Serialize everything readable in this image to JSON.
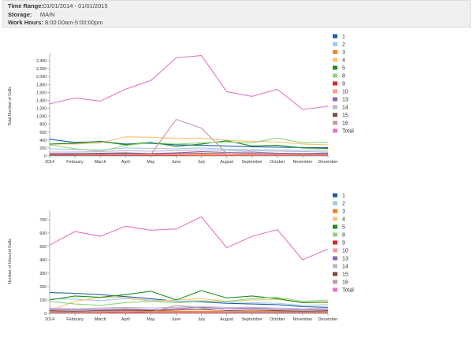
{
  "header": {
    "time_range_label": "Time Range:",
    "time_range_value": "01/01/2014 - 01/01/2015",
    "storage_label": "Storage:",
    "storage_value": "MAIN",
    "work_hours_label": "Work Hours:",
    "work_hours_value": "8:00:00am-5:00:00pm"
  },
  "chart_data": [
    {
      "type": "line",
      "ylabel": "Total Number of Calls",
      "ylim": [
        0,
        2500
      ],
      "yticks": [
        0,
        200,
        400,
        600,
        800,
        1000,
        1200,
        1400,
        1600,
        1800,
        2000,
        2200,
        2400
      ],
      "categories": [
        "2014",
        "February",
        "March",
        "April",
        "May",
        "June",
        "July",
        "August",
        "September",
        "October",
        "November",
        "December"
      ],
      "series": [
        {
          "name": "1",
          "color": "#1f5fa8",
          "values": [
            420,
            340,
            360,
            300,
            320,
            280,
            270,
            250,
            230,
            220,
            210,
            210
          ]
        },
        {
          "name": "2",
          "color": "#9ecae1",
          "values": [
            180,
            160,
            150,
            200,
            190,
            180,
            200,
            170,
            160,
            150,
            140,
            160
          ]
        },
        {
          "name": "3",
          "color": "#f97b1c",
          "values": [
            30,
            40,
            35,
            40,
            30,
            30,
            35,
            30,
            30,
            30,
            30,
            30
          ]
        },
        {
          "name": "4",
          "color": "#fdbf6f",
          "values": [
            300,
            300,
            330,
            480,
            470,
            440,
            450,
            390,
            370,
            350,
            300,
            280
          ]
        },
        {
          "name": "5",
          "color": "#1e8f1e",
          "values": [
            300,
            320,
            370,
            280,
            350,
            240,
            300,
            380,
            250,
            270,
            200,
            190
          ]
        },
        {
          "name": "8",
          "color": "#8fd47e",
          "values": [
            280,
            180,
            120,
            260,
            340,
            300,
            330,
            350,
            330,
            450,
            330,
            350
          ]
        },
        {
          "name": "9",
          "color": "#d62728",
          "values": [
            10,
            10,
            10,
            15,
            10,
            10,
            10,
            10,
            10,
            10,
            10,
            10
          ]
        },
        {
          "name": "10",
          "color": "#ff9896",
          "values": [
            20,
            20,
            25,
            30,
            25,
            25,
            20,
            20,
            20,
            20,
            20,
            20
          ]
        },
        {
          "name": "13",
          "color": "#8e62b8",
          "values": [
            60,
            60,
            70,
            80,
            60,
            80,
            110,
            90,
            100,
            70,
            60,
            80
          ]
        },
        {
          "name": "14",
          "color": "#c5b0d5",
          "values": [
            100,
            100,
            110,
            130,
            120,
            130,
            150,
            140,
            130,
            120,
            110,
            120
          ]
        },
        {
          "name": "15",
          "color": "#7a4a3a",
          "values": [
            40,
            40,
            50,
            60,
            50,
            60,
            70,
            60,
            60,
            50,
            40,
            50
          ]
        },
        {
          "name": "16",
          "color": "#c49c94",
          "values": [
            20,
            20,
            30,
            40,
            40,
            920,
            700,
            60,
            40,
            40,
            30,
            30
          ]
        },
        {
          "name": "Total",
          "color": "#e377c2",
          "values": [
            1310,
            1460,
            1380,
            1680,
            1900,
            2470,
            2530,
            1620,
            1500,
            1680,
            1170,
            1250
          ]
        }
      ]
    },
    {
      "type": "line",
      "ylabel": "Number of Inbound Calls",
      "ylim": [
        0,
        740
      ],
      "yticks": [
        0,
        100,
        200,
        300,
        400,
        500,
        600,
        700
      ],
      "categories": [
        "2014",
        "February",
        "March",
        "April",
        "May",
        "June",
        "July",
        "August",
        "September",
        "October",
        "November",
        "December"
      ],
      "series": [
        {
          "name": "1",
          "color": "#1f5fa8",
          "values": [
            155,
            150,
            140,
            125,
            110,
            90,
            85,
            75,
            70,
            65,
            50,
            45
          ]
        },
        {
          "name": "2",
          "color": "#9ecae1",
          "values": [
            110,
            105,
            95,
            110,
            100,
            90,
            95,
            85,
            80,
            75,
            60,
            65
          ]
        },
        {
          "name": "3",
          "color": "#f97b1c",
          "values": [
            15,
            15,
            20,
            20,
            15,
            15,
            15,
            15,
            15,
            15,
            15,
            15
          ]
        },
        {
          "name": "4",
          "color": "#fdbf6f",
          "values": [
            20,
            90,
            120,
            120,
            90,
            100,
            110,
            90,
            100,
            105,
            80,
            80
          ]
        },
        {
          "name": "5",
          "color": "#1e8f1e",
          "values": [
            100,
            130,
            120,
            140,
            165,
            100,
            170,
            115,
            130,
            110,
            80,
            85
          ]
        },
        {
          "name": "8",
          "color": "#8fd47e",
          "values": [
            90,
            70,
            60,
            80,
            90,
            80,
            90,
            90,
            110,
            120,
            90,
            100
          ]
        },
        {
          "name": "9",
          "color": "#d62728",
          "values": [
            5,
            5,
            5,
            5,
            5,
            5,
            5,
            5,
            5,
            5,
            5,
            5
          ]
        },
        {
          "name": "10",
          "color": "#ff9896",
          "values": [
            10,
            10,
            10,
            15,
            10,
            10,
            10,
            10,
            10,
            10,
            10,
            10
          ]
        },
        {
          "name": "13",
          "color": "#8e62b8",
          "values": [
            30,
            25,
            30,
            35,
            25,
            35,
            45,
            35,
            40,
            30,
            25,
            30
          ]
        },
        {
          "name": "14",
          "color": "#c5b0d5",
          "values": [
            40,
            35,
            40,
            45,
            40,
            45,
            50,
            45,
            45,
            40,
            35,
            40
          ]
        },
        {
          "name": "15",
          "color": "#7a4a3a",
          "values": [
            20,
            15,
            20,
            25,
            20,
            25,
            30,
            20,
            25,
            20,
            15,
            20
          ]
        },
        {
          "name": "16",
          "color": "#c49c94",
          "values": [
            10,
            10,
            15,
            15,
            10,
            60,
            40,
            15,
            10,
            10,
            10,
            10
          ]
        },
        {
          "name": "Total",
          "color": "#e377c2",
          "values": [
            510,
            610,
            575,
            650,
            620,
            630,
            720,
            490,
            575,
            625,
            400,
            480
          ]
        }
      ]
    }
  ]
}
